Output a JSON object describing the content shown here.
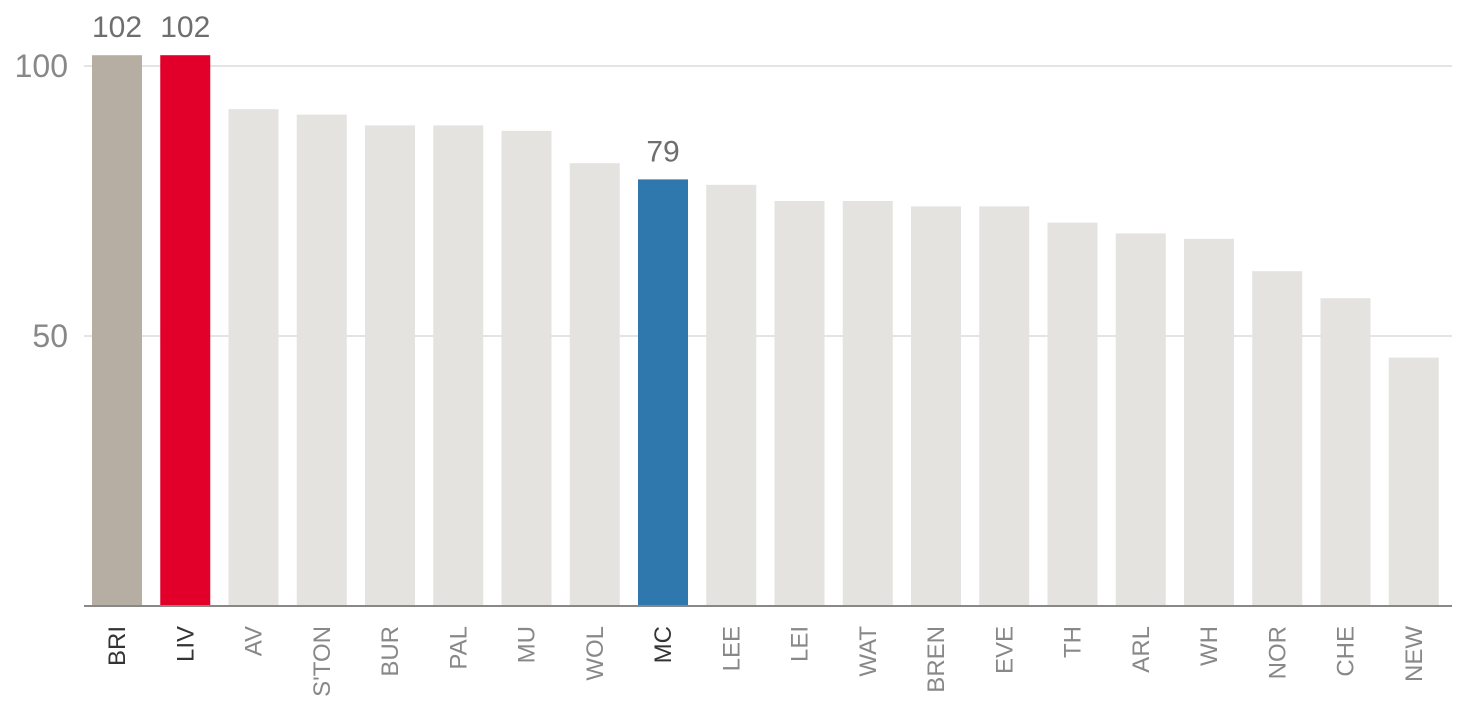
{
  "chart_data": {
    "type": "bar",
    "title": "",
    "xlabel": "",
    "ylabel": "",
    "ylim": [
      0,
      102
    ],
    "yticks": [
      50,
      100
    ],
    "grid": true,
    "categories": [
      "BRI",
      "LIV",
      "AV",
      "S'TON",
      "BUR",
      "PAL",
      "MU",
      "WOL",
      "MC",
      "LEE",
      "LEI",
      "WAT",
      "BREN",
      "EVE",
      "TH",
      "ARL",
      "WH",
      "NOR",
      "CHE",
      "NEW"
    ],
    "values": [
      102,
      102,
      92,
      91,
      89,
      89,
      88,
      82,
      79,
      78,
      75,
      75,
      74,
      74,
      71,
      69,
      68,
      62,
      57,
      46
    ],
    "data_labels": [
      {
        "category": "BRI",
        "text": "102"
      },
      {
        "category": "LIV",
        "text": "102"
      },
      {
        "category": "MC",
        "text": "79"
      }
    ],
    "colors": {
      "default": "#e4e3df",
      "BRI": "#b7aea3",
      "LIV": "#e2002a",
      "MC": "#2e78ad"
    },
    "label_colors": {
      "default": "#888888",
      "highlight": "#333333"
    },
    "highlight_labels": [
      "BRI",
      "LIV",
      "MC"
    ]
  }
}
